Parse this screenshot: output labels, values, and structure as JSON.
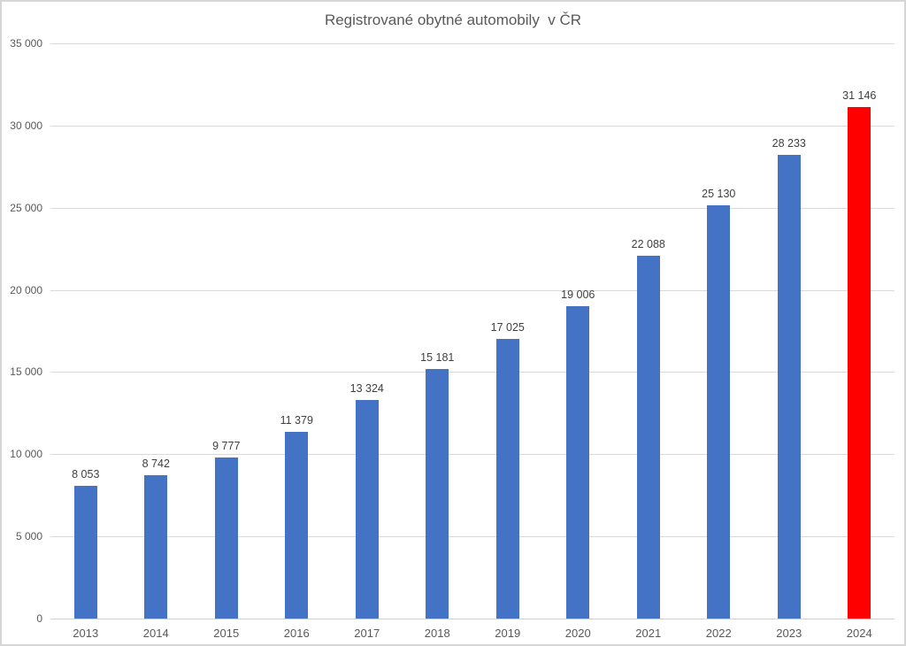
{
  "chart_data": {
    "type": "bar",
    "title": "Registrované obytné automobily  v ČR",
    "categories": [
      "2013",
      "2014",
      "2015",
      "2016",
      "2017",
      "2018",
      "2019",
      "2020",
      "2021",
      "2022",
      "2023",
      "2024"
    ],
    "values": [
      8053,
      8742,
      9777,
      11379,
      13324,
      15181,
      17025,
      19006,
      22088,
      25130,
      28233,
      31146
    ],
    "value_labels": [
      "8 053",
      "8 742",
      "9 777",
      "11 379",
      "13 324",
      "15 181",
      "17 025",
      "19 006",
      "22 088",
      "25 130",
      "28 233",
      "31 146"
    ],
    "xlabel": "",
    "ylabel": "",
    "ylim": [
      0,
      35000
    ],
    "ytick_interval": 5000,
    "ytick_labels": [
      "0",
      "5 000",
      "10 000",
      "15 000",
      "20 000",
      "25 000",
      "30 000",
      "35 000"
    ],
    "grid": true,
    "legend": "none",
    "bar_color": "#4472C4",
    "highlight_index": 11,
    "highlight_color": "#FF0000",
    "title_color": "#595959",
    "axis_label_color": "#595959",
    "data_label_color": "#404040",
    "gridline_color": "#D9D9D9"
  }
}
